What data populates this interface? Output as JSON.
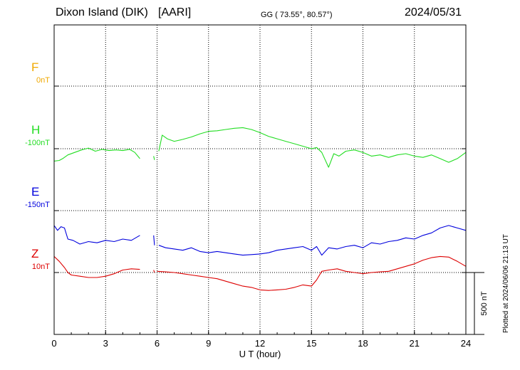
{
  "header": {
    "station": "Dixon Island (DIK)",
    "org": "[AARI]",
    "coords": "GG ( 73.55°,  80.57°)",
    "date": "2024/05/31"
  },
  "plotted": "Plotted at 2024/06/06 21:13 UT",
  "colors": {
    "F": "#f0a800",
    "H": "#22dd22",
    "E": "#0000dd",
    "Z": "#dd0000"
  },
  "chart_data": {
    "type": "line",
    "xlabel": "U T (hour)",
    "xlim": [
      0,
      24
    ],
    "xticks": [
      0,
      3,
      6,
      9,
      12,
      15,
      18,
      21,
      24
    ],
    "scale_bar": "500 nT",
    "channels": [
      {
        "name": "F",
        "base": "0nT",
        "color": "#f0a800",
        "slot": 0
      },
      {
        "name": "H",
        "base": "-100nT",
        "color": "#22dd22",
        "slot": 1
      },
      {
        "name": "E",
        "base": "-150nT",
        "color": "#0000dd",
        "slot": 2
      },
      {
        "name": "Z",
        "base": "10nT",
        "color": "#dd0000",
        "slot": 3
      }
    ],
    "series": [
      {
        "name": "F",
        "segments": []
      },
      {
        "name": "H",
        "segments": [
          [
            [
              0.0,
              -100
            ],
            [
              0.3,
              -95
            ],
            [
              0.5,
              -80
            ],
            [
              0.8,
              -50
            ],
            [
              1.2,
              -30
            ],
            [
              1.6,
              -10
            ],
            [
              2.0,
              5
            ],
            [
              2.4,
              -20
            ],
            [
              2.8,
              -5
            ],
            [
              3.2,
              -15
            ],
            [
              3.6,
              -10
            ],
            [
              4.0,
              -15
            ],
            [
              4.4,
              -5
            ],
            [
              4.7,
              -30
            ],
            [
              5.0,
              -80
            ]
          ],
          [
            [
              5.8,
              -60
            ],
            [
              5.85,
              -90
            ]
          ],
          [
            [
              6.1,
              -20
            ],
            [
              6.3,
              110
            ],
            [
              6.6,
              80
            ],
            [
              7.0,
              60
            ],
            [
              7.5,
              75
            ],
            [
              8.0,
              95
            ],
            [
              8.5,
              120
            ],
            [
              9.0,
              140
            ],
            [
              9.5,
              145
            ],
            [
              10.0,
              155
            ],
            [
              10.5,
              165
            ],
            [
              11.0,
              170
            ],
            [
              11.5,
              155
            ],
            [
              12.0,
              130
            ],
            [
              12.5,
              100
            ],
            [
              13.0,
              80
            ],
            [
              13.5,
              60
            ],
            [
              14.0,
              40
            ],
            [
              14.5,
              20
            ],
            [
              15.0,
              0
            ],
            [
              15.3,
              10
            ],
            [
              15.6,
              -30
            ],
            [
              15.8,
              -90
            ],
            [
              16.0,
              -150
            ],
            [
              16.3,
              -40
            ],
            [
              16.6,
              -60
            ],
            [
              17.0,
              -20
            ],
            [
              17.5,
              -10
            ],
            [
              18.0,
              -30
            ],
            [
              18.5,
              -60
            ],
            [
              19.0,
              -50
            ],
            [
              19.5,
              -70
            ],
            [
              20.0,
              -50
            ],
            [
              20.5,
              -40
            ],
            [
              21.0,
              -60
            ],
            [
              21.5,
              -70
            ],
            [
              22.0,
              -50
            ],
            [
              22.5,
              -80
            ],
            [
              23.0,
              -110
            ],
            [
              23.5,
              -80
            ],
            [
              24.0,
              -30
            ]
          ]
        ]
      },
      {
        "name": "E",
        "segments": [
          [
            [
              0.0,
              -120
            ],
            [
              0.2,
              -160
            ],
            [
              0.4,
              -130
            ],
            [
              0.6,
              -140
            ],
            [
              0.8,
              -230
            ],
            [
              1.1,
              -240
            ],
            [
              1.5,
              -270
            ],
            [
              2.0,
              -250
            ],
            [
              2.5,
              -260
            ],
            [
              3.0,
              -240
            ],
            [
              3.5,
              -250
            ],
            [
              4.0,
              -230
            ],
            [
              4.5,
              -240
            ],
            [
              5.0,
              -200
            ]
          ],
          [
            [
              5.8,
              -200
            ],
            [
              5.85,
              -280
            ]
          ],
          [
            [
              6.1,
              -280
            ],
            [
              6.5,
              -300
            ],
            [
              7.0,
              -310
            ],
            [
              7.5,
              -320
            ],
            [
              8.0,
              -300
            ],
            [
              8.5,
              -330
            ],
            [
              9.0,
              -340
            ],
            [
              9.5,
              -330
            ],
            [
              10.0,
              -340
            ],
            [
              10.5,
              -350
            ],
            [
              11.0,
              -360
            ],
            [
              11.5,
              -355
            ],
            [
              12.0,
              -350
            ],
            [
              12.5,
              -340
            ],
            [
              13.0,
              -320
            ],
            [
              13.5,
              -310
            ],
            [
              14.0,
              -300
            ],
            [
              14.5,
              -290
            ],
            [
              15.0,
              -320
            ],
            [
              15.3,
              -290
            ],
            [
              15.6,
              -360
            ],
            [
              16.0,
              -300
            ],
            [
              16.5,
              -310
            ],
            [
              17.0,
              -290
            ],
            [
              17.5,
              -280
            ],
            [
              18.0,
              -300
            ],
            [
              18.5,
              -260
            ],
            [
              19.0,
              -270
            ],
            [
              19.5,
              -250
            ],
            [
              20.0,
              -240
            ],
            [
              20.5,
              -220
            ],
            [
              21.0,
              -230
            ],
            [
              21.5,
              -200
            ],
            [
              22.0,
              -180
            ],
            [
              22.5,
              -140
            ],
            [
              23.0,
              -120
            ],
            [
              23.5,
              -140
            ],
            [
              24.0,
              -160
            ]
          ]
        ]
      },
      {
        "name": "Z",
        "segments": [
          [
            [
              0.0,
              130
            ],
            [
              0.3,
              90
            ],
            [
              0.6,
              40
            ],
            [
              0.8,
              0
            ],
            [
              1.0,
              -20
            ],
            [
              1.5,
              -30
            ],
            [
              2.0,
              -40
            ],
            [
              2.5,
              -40
            ],
            [
              3.0,
              -30
            ],
            [
              3.5,
              -10
            ],
            [
              4.0,
              20
            ],
            [
              4.5,
              30
            ],
            [
              5.0,
              25
            ]
          ],
          [
            [
              5.8,
              20
            ],
            [
              5.85,
              0
            ]
          ],
          [
            [
              6.0,
              10
            ],
            [
              6.5,
              5
            ],
            [
              7.0,
              0
            ],
            [
              7.5,
              -10
            ],
            [
              8.0,
              -20
            ],
            [
              8.5,
              -30
            ],
            [
              9.0,
              -40
            ],
            [
              9.5,
              -50
            ],
            [
              10.0,
              -70
            ],
            [
              10.5,
              -90
            ],
            [
              11.0,
              -110
            ],
            [
              11.5,
              -120
            ],
            [
              12.0,
              -140
            ],
            [
              12.5,
              -145
            ],
            [
              13.0,
              -140
            ],
            [
              13.5,
              -135
            ],
            [
              14.0,
              -120
            ],
            [
              14.5,
              -100
            ],
            [
              15.0,
              -110
            ],
            [
              15.3,
              -60
            ],
            [
              15.6,
              10
            ],
            [
              16.0,
              20
            ],
            [
              16.5,
              30
            ],
            [
              17.0,
              10
            ],
            [
              17.5,
              0
            ],
            [
              18.0,
              -10
            ],
            [
              18.5,
              0
            ],
            [
              19.0,
              5
            ],
            [
              19.5,
              10
            ],
            [
              20.0,
              30
            ],
            [
              20.5,
              50
            ],
            [
              21.0,
              70
            ],
            [
              21.5,
              100
            ],
            [
              22.0,
              120
            ],
            [
              22.5,
              130
            ],
            [
              23.0,
              125
            ],
            [
              23.5,
              90
            ],
            [
              24.0,
              50
            ]
          ]
        ]
      }
    ]
  }
}
